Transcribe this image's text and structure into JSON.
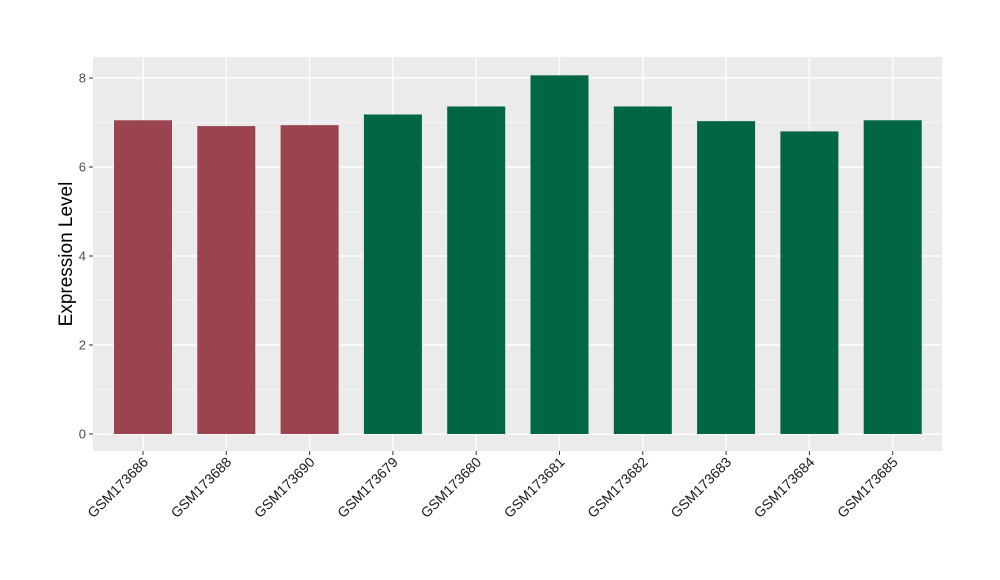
{
  "chart_data": {
    "type": "bar",
    "categories": [
      "GSM173686",
      "GSM173688",
      "GSM173690",
      "GSM173679",
      "GSM173680",
      "GSM173681",
      "GSM173682",
      "GSM173683",
      "GSM173684",
      "GSM173685"
    ],
    "values": [
      7.05,
      6.92,
      6.94,
      7.18,
      7.36,
      8.06,
      7.36,
      7.03,
      6.8,
      7.05
    ],
    "groups": [
      0,
      0,
      0,
      1,
      1,
      1,
      1,
      1,
      1,
      1
    ],
    "group_colors": [
      "#99444f",
      "#006644"
    ],
    "title": "",
    "xlabel": "",
    "ylabel": "Expression Level",
    "ylim": [
      0,
      8.1
    ],
    "yticks": [
      0,
      2,
      4,
      6,
      8
    ],
    "grid": true,
    "legend": "none",
    "panel_background": "#ebebeb"
  }
}
